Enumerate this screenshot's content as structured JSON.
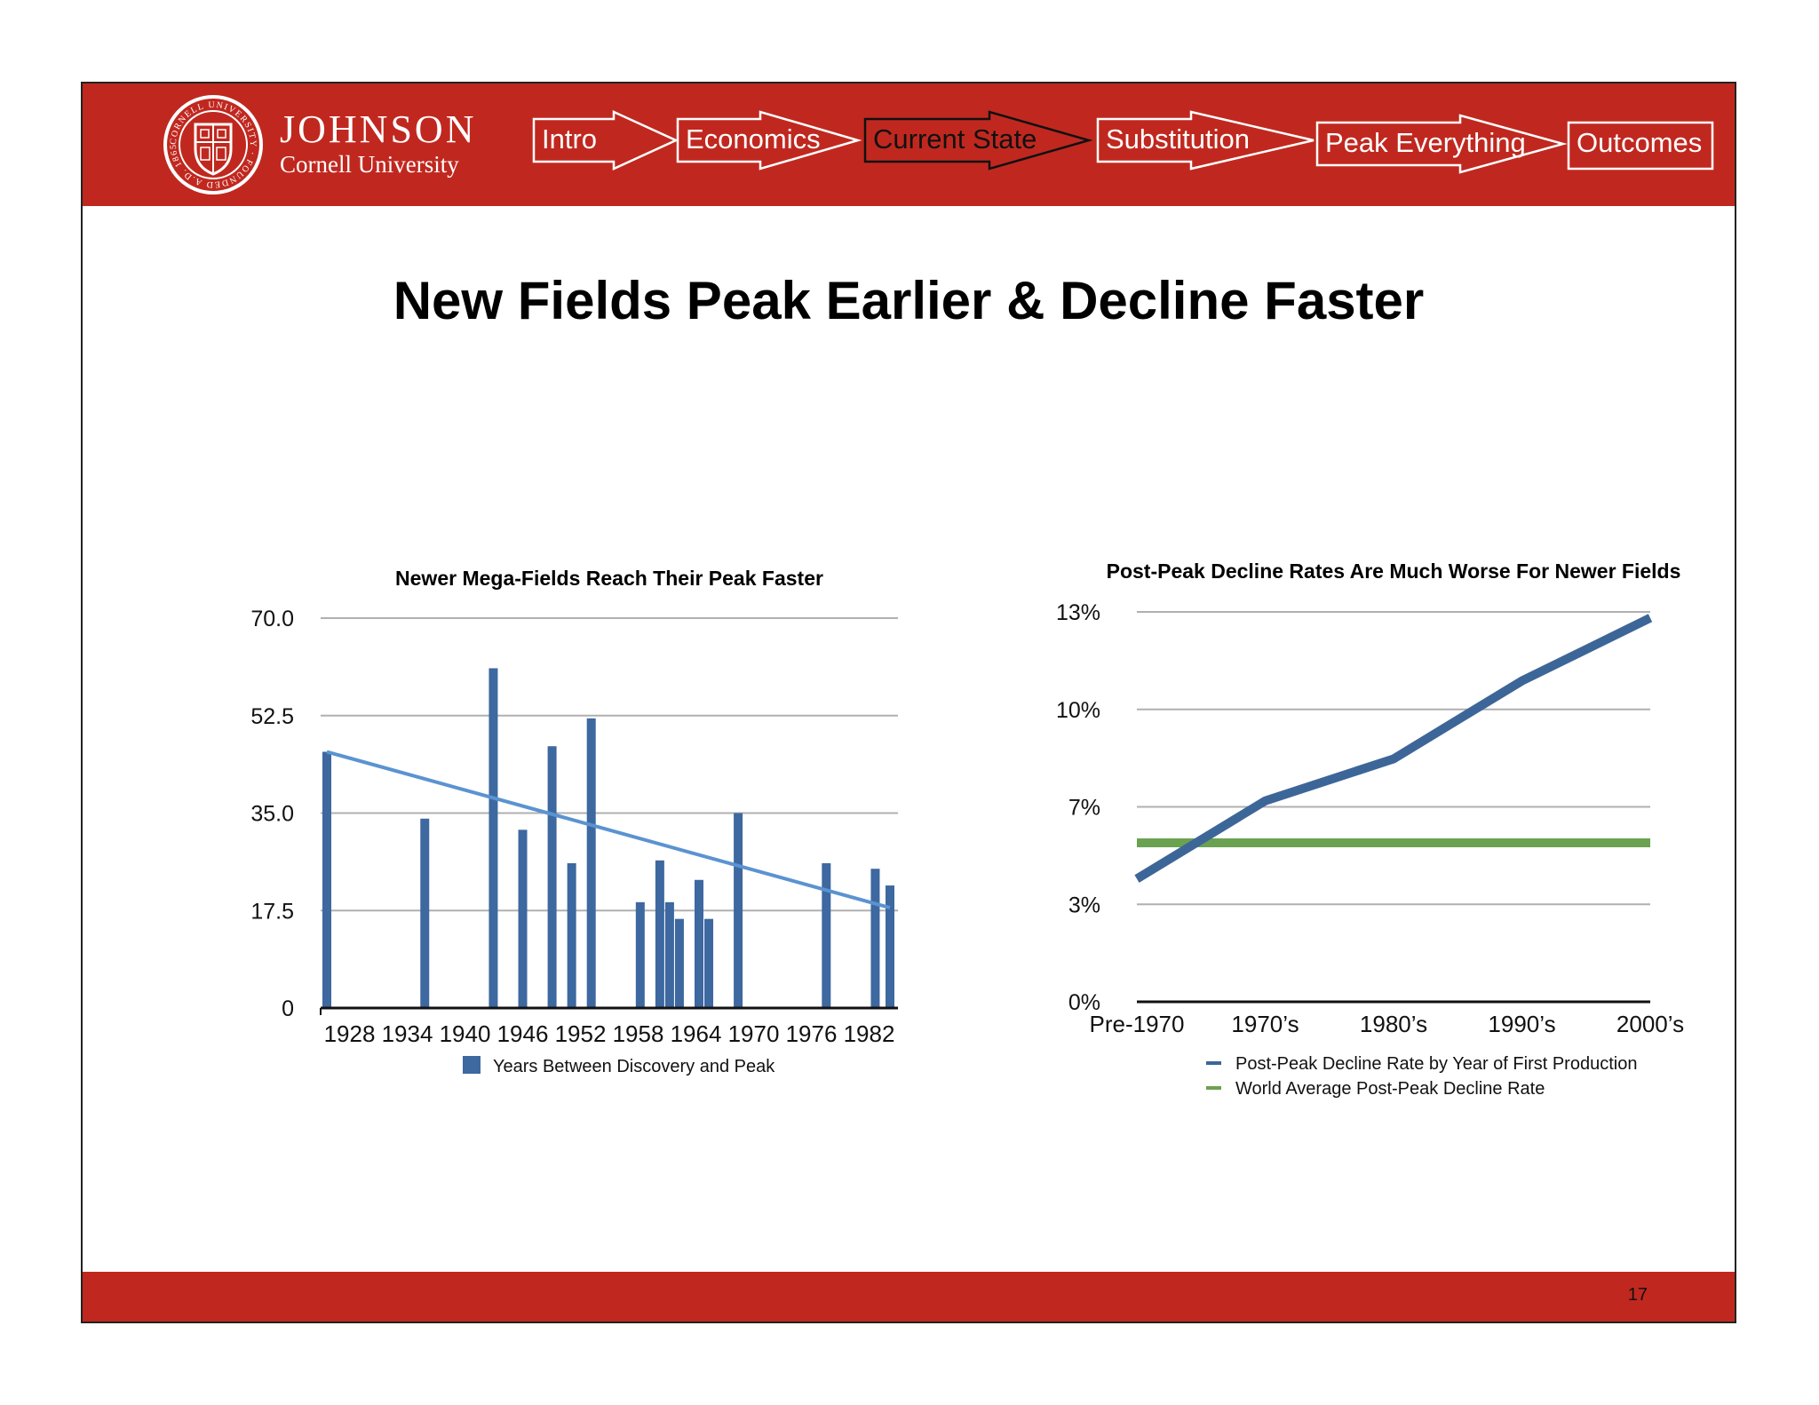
{
  "header": {
    "brand_name": "JOHNSON",
    "brand_sub": "Cornell University",
    "seal_text": "CORNELL UNIVERSITY FOUNDED A.D. 1865",
    "nav": [
      {
        "label": "Intro",
        "active": false
      },
      {
        "label": "Economics",
        "active": false
      },
      {
        "label": "Current State",
        "active": true
      },
      {
        "label": "Substitution",
        "active": false
      },
      {
        "label": "Peak Everything",
        "active": false
      },
      {
        "label": "Outcomes",
        "active": false
      }
    ]
  },
  "title": "New Fields Peak Earlier & Decline Faster",
  "page_number": "17",
  "colors": {
    "brand_red": "#c0281f",
    "bar_blue": "#3d68a0",
    "trend_blue": "#5b93d1",
    "line_blue": "#3d6698",
    "line_green": "#6aa251"
  },
  "chart_data": [
    {
      "type": "bar",
      "title": "Newer Mega-Fields Reach Their Peak Faster",
      "ylim": [
        0,
        70
      ],
      "yticks": [
        "0",
        "17.5",
        "35.0",
        "52.5",
        "70.0"
      ],
      "xticks": [
        "1928",
        "1934",
        "1940",
        "1946",
        "1952",
        "1958",
        "1964",
        "1970",
        "1976",
        "1982"
      ],
      "xlim": [
        1928,
        1985.5
      ],
      "legend": "Years Between Discovery and Peak",
      "legend_position": "bottom",
      "grid": true,
      "series": [
        {
          "name": "Years Between Discovery and Peak",
          "points": [
            {
              "x": 1928,
              "y": 46
            },
            {
              "x": 1938,
              "y": 34
            },
            {
              "x": 1945,
              "y": 61
            },
            {
              "x": 1948,
              "y": 32
            },
            {
              "x": 1951,
              "y": 47
            },
            {
              "x": 1953,
              "y": 26
            },
            {
              "x": 1955,
              "y": 52
            },
            {
              "x": 1960,
              "y": 19
            },
            {
              "x": 1962,
              "y": 26.5
            },
            {
              "x": 1963,
              "y": 19
            },
            {
              "x": 1964,
              "y": 16
            },
            {
              "x": 1966,
              "y": 23
            },
            {
              "x": 1967,
              "y": 16
            },
            {
              "x": 1970,
              "y": 35
            },
            {
              "x": 1979,
              "y": 26
            },
            {
              "x": 1984,
              "y": 25
            },
            {
              "x": 1985.5,
              "y": 22
            }
          ]
        }
      ],
      "trendline": {
        "x": [
          1928,
          1985.5
        ],
        "y": [
          46,
          18
        ]
      }
    },
    {
      "type": "line",
      "title": "Post-Peak Decline Rates Are Much Worse For Newer Fields",
      "categories": [
        "Pre-1970",
        "1970’s",
        "1980’s",
        "1990’s",
        "2000’s"
      ],
      "yticks": [
        "0%",
        "3%",
        "7%",
        "10%",
        "13%"
      ],
      "ylim": [
        0,
        13
      ],
      "legend_position": "bottom",
      "grid": true,
      "series": [
        {
          "name": "Post-Peak Decline Rate by Year of First Production",
          "values": [
            4.1,
            6.7,
            8.1,
            10.7,
            12.8
          ],
          "color": "#3d6698"
        },
        {
          "name": "World Average Post-Peak Decline Rate",
          "values": [
            5.3,
            5.3,
            5.3,
            5.3,
            5.3
          ],
          "color": "#6aa251"
        }
      ]
    }
  ]
}
